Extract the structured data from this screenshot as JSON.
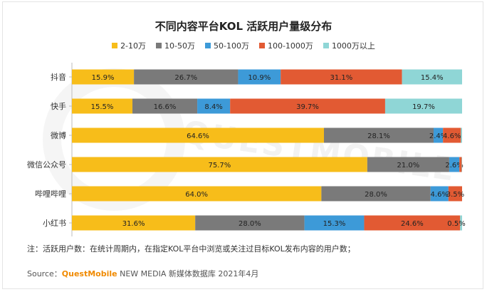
{
  "chart_data": {
    "type": "bar",
    "orientation": "horizontal",
    "stacked": true,
    "normalized": true,
    "title": "不同内容平台KOL 活跃用户量级分布",
    "categories": [
      "抖音",
      "快手",
      "微博",
      "微信公众号",
      "哔哩哔哩",
      "小红书"
    ],
    "series": [
      {
        "name": "2-10万",
        "color": "#f7bd1a",
        "values": [
          15.9,
          15.5,
          64.6,
          75.7,
          64.0,
          31.6
        ]
      },
      {
        "name": "10-50万",
        "color": "#7a7a7a",
        "values": [
          26.7,
          16.6,
          28.1,
          21.0,
          28.0,
          28.0
        ]
      },
      {
        "name": "50-100万",
        "color": "#3d9ad8",
        "values": [
          10.9,
          8.4,
          2.4,
          2.6,
          4.6,
          15.3
        ]
      },
      {
        "name": "100-1000万",
        "color": "#e25a33",
        "values": [
          31.1,
          39.7,
          4.6,
          0.6,
          3.5,
          24.6
        ]
      },
      {
        "name": "1000万以上",
        "color": "#8fd6d6",
        "values": [
          15.4,
          19.7,
          0.3,
          0.1,
          0.0,
          0.5
        ]
      }
    ],
    "data_labels": [
      [
        "15.9%",
        "26.7%",
        "10.9%",
        "31.1%",
        "15.4%"
      ],
      [
        "15.5%",
        "16.6%",
        "8.4%",
        "39.7%",
        "19.7%"
      ],
      [
        "64.6%",
        "28.1%",
        "2.4%",
        "4.6%",
        ""
      ],
      [
        "75.7%",
        "21.0%",
        "2.6%",
        "",
        ""
      ],
      [
        "64.0%",
        "28.0%",
        "4.6%",
        "3.5%",
        ""
      ],
      [
        "31.6%",
        "28.0%",
        "15.3%",
        "24.6%",
        "0.5%"
      ]
    ],
    "legend_position": "top-center",
    "grid": false
  },
  "footer": {
    "note": "注：活跃用户数：在统计周期内，在指定KOL平台中浏览或关注过目标KOL发布内容的用户数；",
    "source_prefix": "Source：",
    "source_brand": "QuestMobile",
    "source_suffix": " NEW MEDIA 新媒体数据库 2021年4月"
  },
  "watermark_text": "QUESTMOBILE"
}
